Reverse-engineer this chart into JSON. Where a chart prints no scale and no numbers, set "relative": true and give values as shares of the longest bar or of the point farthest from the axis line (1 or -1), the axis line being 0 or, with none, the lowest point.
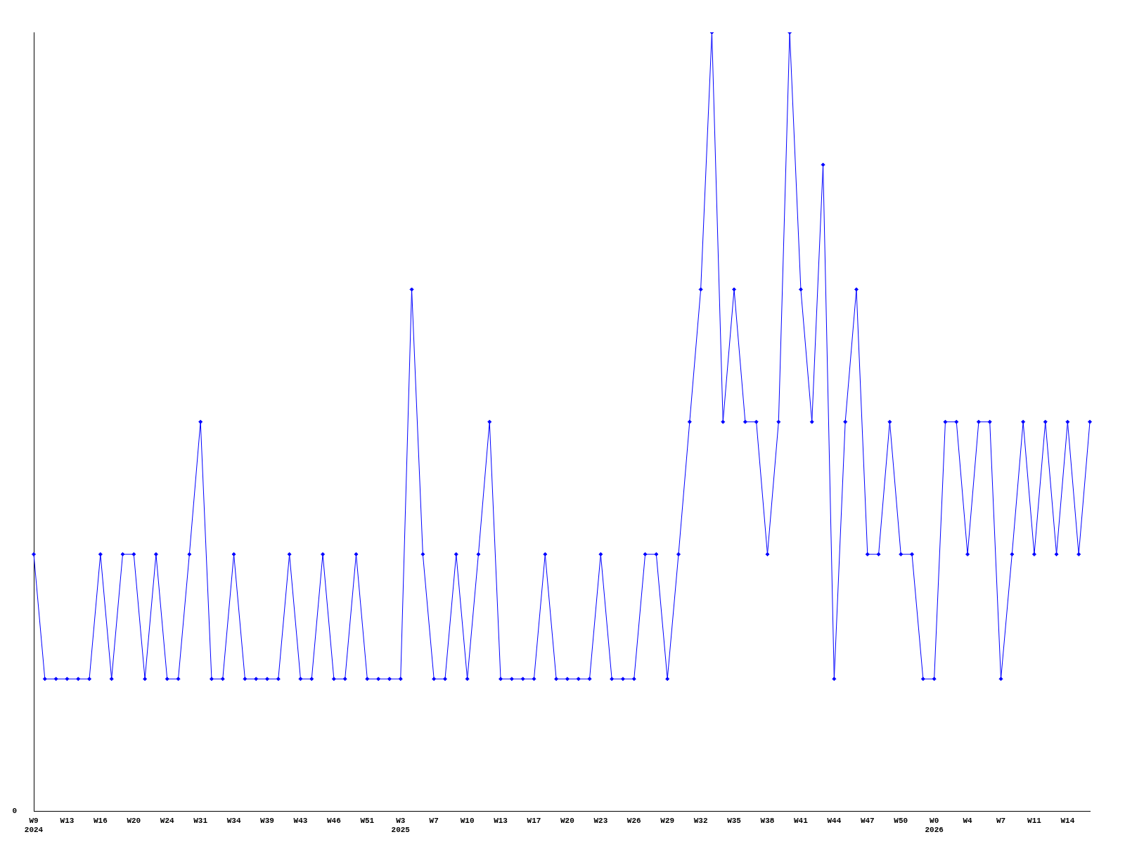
{
  "chart_data": {
    "type": "line",
    "relative": true,
    "grid": false,
    "legend": false,
    "marker": "diamond",
    "line_style": "solid",
    "tick_labels": "x",
    "annotations": [
      "0"
    ],
    "categories": [
      "W9\n2024",
      null,
      null,
      "W13",
      null,
      null,
      "W16",
      null,
      null,
      "W20",
      null,
      null,
      "W24",
      null,
      null,
      "W31",
      null,
      null,
      "W34",
      null,
      null,
      "W39",
      null,
      null,
      "W43",
      null,
      null,
      "W46",
      null,
      null,
      "W51",
      null,
      null,
      "W3\n2025",
      null,
      null,
      "W7",
      null,
      null,
      "W10",
      null,
      null,
      "W13",
      null,
      null,
      "W17",
      null,
      null,
      "W20",
      null,
      null,
      "W23",
      null,
      null,
      "W26",
      null,
      null,
      "W29",
      null,
      null,
      "W32",
      null,
      null,
      "W35",
      null,
      null,
      "W38",
      null,
      null,
      "W41",
      null,
      null,
      "W44",
      null,
      null,
      "W47",
      null,
      null,
      "W50",
      null,
      null,
      "W0\n2026",
      null,
      null,
      "W4",
      null,
      null,
      "W7",
      null,
      null,
      "W11",
      null,
      null,
      "W14",
      null,
      null
    ],
    "series": [
      {
        "color": "#0000ff",
        "values": [
          0.33,
          0.17,
          0.17,
          0.17,
          0.17,
          0.17,
          0.33,
          0.17,
          0.33,
          0.33,
          0.17,
          0.33,
          0.17,
          0.17,
          0.33,
          0.5,
          0.17,
          0.17,
          0.33,
          0.17,
          0.17,
          0.17,
          0.17,
          0.33,
          0.17,
          0.17,
          0.33,
          0.17,
          0.17,
          0.33,
          0.17,
          0.17,
          0.17,
          0.17,
          0.67,
          0.33,
          0.17,
          0.17,
          0.33,
          0.17,
          0.33,
          0.5,
          0.17,
          0.17,
          0.17,
          0.17,
          0.33,
          0.17,
          0.17,
          0.17,
          0.17,
          0.33,
          0.17,
          0.17,
          0.17,
          0.33,
          0.33,
          0.17,
          0.33,
          0.5,
          0.67,
          1,
          0.5,
          0.67,
          0.5,
          0.5,
          0.33,
          0.5,
          1,
          0.67,
          0.5,
          0.83,
          0.17,
          0.5,
          0.67,
          0.33,
          0.33,
          0.5,
          0.33,
          0.33,
          0.17,
          0.17,
          0.5,
          0.5,
          0.33,
          0.5,
          0.5,
          0.17,
          0.33,
          0.5,
          0.33,
          0.5,
          0.33,
          0.5,
          0.33,
          0.5
        ]
      }
    ]
  }
}
